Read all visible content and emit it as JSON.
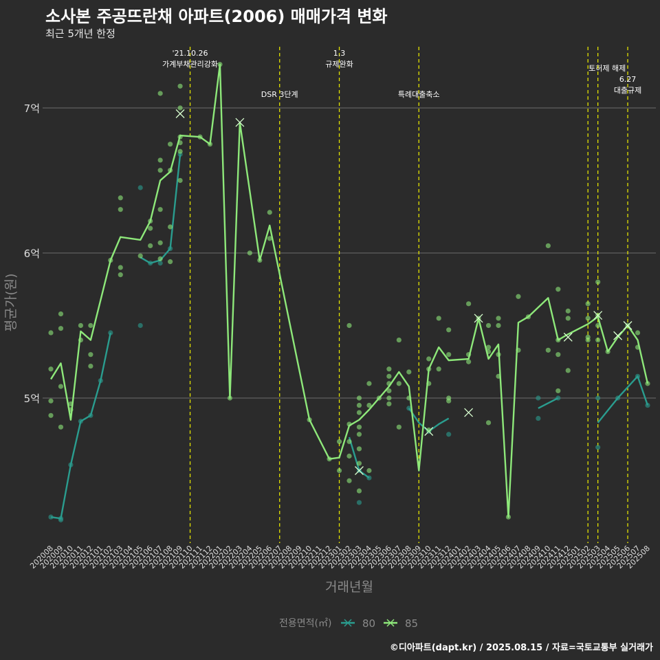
{
  "header": {
    "title": "소사본 주공뜨란채 아파트(2006) 매매가격 변화",
    "subtitle": "최근 5개년 한정"
  },
  "caption": "©디아파트(dapt.kr) / 2025.08.15 / 자료=국토교통부 실거래가",
  "colors": {
    "background": "#2b2b2b",
    "grid": "#6e6e6e",
    "event_line": "#e3e300",
    "series_80": "#2a9d8f",
    "series_85": "#8ee87a"
  },
  "chart_data": {
    "type": "line",
    "xlabel": "거래년월",
    "ylabel": "평균가(원)",
    "grid": true,
    "legend_position": "bottom",
    "legend_title": "전용면적(㎡)",
    "y_unit": "억원",
    "ylim": [
      4.0,
      7.45
    ],
    "yticks": [
      {
        "value": 5,
        "label": "5억"
      },
      {
        "value": 6,
        "label": "6억"
      },
      {
        "value": 7,
        "label": "7억"
      }
    ],
    "categories": [
      "202008",
      "202009",
      "202010",
      "202011",
      "202012",
      "202101",
      "202102",
      "202103",
      "202104",
      "202105",
      "202106",
      "202107",
      "202108",
      "202109",
      "202110",
      "202111",
      "202112",
      "202201",
      "202202",
      "202203",
      "202204",
      "202205",
      "202206",
      "202207",
      "202208",
      "202209",
      "202210",
      "202211",
      "202212",
      "202301",
      "202302",
      "202303",
      "202304",
      "202305",
      "202306",
      "202307",
      "202308",
      "202309",
      "202310",
      "202311",
      "202312",
      "202401",
      "202402",
      "202403",
      "202404",
      "202405",
      "202406",
      "202407",
      "202408",
      "202409",
      "202410",
      "202411",
      "202412",
      "202501",
      "202502",
      "202503",
      "202504",
      "202505",
      "202506",
      "202507",
      "202508"
    ],
    "events": [
      {
        "x": "202110",
        "label_lines": [
          "'21.10.26",
          "가계부채관리강화"
        ],
        "row": 1
      },
      {
        "x": "202207",
        "label_lines": [
          "DSR 3단계"
        ],
        "row": 2
      },
      {
        "x": "202301",
        "label_lines": [
          "1.3",
          "규제완화"
        ],
        "row": 1
      },
      {
        "x": "202309",
        "label_lines": [
          "특례대출축소"
        ],
        "row": 2
      },
      {
        "x": "202502",
        "label_lines": [
          "토허제 해제"
        ],
        "row": 1,
        "anchor": "end-right"
      },
      {
        "x": "202503",
        "label_lines": [],
        "row": 1
      },
      {
        "x": "202506",
        "label_lines": [
          "6.27",
          "대출규제"
        ],
        "row": 2
      }
    ],
    "series": [
      {
        "name": "80",
        "line": [
          [
            "202008",
            4.18
          ],
          [
            "202009",
            4.17
          ],
          [
            "202010",
            4.54
          ],
          [
            "202011",
            4.84
          ],
          [
            "202012",
            4.88
          ],
          [
            "202101",
            5.12
          ],
          [
            "202102",
            5.45
          ],
          null,
          [
            "202105",
            5.97
          ],
          [
            "202106",
            5.93
          ],
          [
            "202107",
            5.95
          ],
          [
            "202108",
            6.03
          ],
          [
            "202109",
            6.68
          ],
          null,
          [
            "202302",
            4.73
          ],
          [
            "202303",
            4.5
          ],
          [
            "202304",
            4.45
          ],
          null,
          [
            "202308",
            4.93
          ],
          [
            "202309",
            4.83
          ],
          [
            "202310",
            4.77
          ],
          [
            "202311",
            4.82
          ],
          [
            "202312",
            4.86
          ],
          null,
          [
            "202409",
            4.93
          ],
          [
            "202411",
            5.0
          ],
          null,
          [
            "202503",
            4.83
          ],
          [
            "202505",
            5.0
          ],
          [
            "202507",
            5.15
          ],
          [
            "202508",
            4.95
          ]
        ],
        "points": [
          [
            "202008",
            4.18
          ],
          [
            "202009",
            4.17
          ],
          [
            "202009",
            4.16
          ],
          [
            "202010",
            4.54
          ],
          [
            "202011",
            4.84
          ],
          [
            "202012",
            4.88
          ],
          [
            "202101",
            5.12
          ],
          [
            "202102",
            5.45
          ],
          [
            "202105",
            5.5
          ],
          [
            "202105",
            6.45
          ],
          [
            "202106",
            5.93
          ],
          [
            "202107",
            5.93
          ],
          [
            "202108",
            6.03
          ],
          [
            "202109",
            6.68
          ],
          [
            "202303",
            4.28
          ],
          [
            "202303",
            4.5
          ],
          [
            "202304",
            4.45
          ],
          [
            "202308",
            4.93
          ],
          [
            "202310",
            4.77
          ],
          [
            "202312",
            4.75
          ],
          [
            "202409",
            5.0
          ],
          [
            "202409",
            4.86
          ],
          [
            "202411",
            5.0
          ],
          [
            "202503",
            5.0
          ],
          [
            "202503",
            4.66
          ],
          [
            "202505",
            5.0
          ],
          [
            "202507",
            5.15
          ],
          [
            "202508",
            4.95
          ]
        ],
        "crosses": [
          [
            "202303",
            4.5
          ],
          [
            "202310",
            4.77
          ]
        ]
      },
      {
        "name": "85",
        "line": [
          [
            "202008",
            5.13
          ],
          [
            "202009",
            5.24
          ],
          [
            "202010",
            4.85
          ],
          [
            "202011",
            5.46
          ],
          [
            "202012",
            5.4
          ],
          [
            "202102",
            5.95
          ],
          [
            "202103",
            6.11
          ],
          [
            "202105",
            6.09
          ],
          [
            "202106",
            6.22
          ],
          [
            "202107",
            6.5
          ],
          [
            "202108",
            6.56
          ],
          [
            "202109",
            6.81
          ],
          [
            "202111",
            6.8
          ],
          [
            "202112",
            6.75
          ],
          [
            "202201",
            7.3
          ],
          [
            "202202",
            5.0
          ],
          [
            "202203",
            6.9
          ],
          [
            "202205",
            5.95
          ],
          [
            "202206",
            6.19
          ],
          [
            "202210",
            4.85
          ],
          [
            "202212",
            4.58
          ],
          [
            "202301",
            4.59
          ],
          [
            "202302",
            4.81
          ],
          [
            "202303",
            4.85
          ],
          [
            "202304",
            4.92
          ],
          [
            "202305",
            5.0
          ],
          [
            "202306",
            5.08
          ],
          [
            "202307",
            5.18
          ],
          [
            "202308",
            5.08
          ],
          [
            "202309",
            4.5
          ],
          [
            "202310",
            5.2
          ],
          [
            "202311",
            5.35
          ],
          [
            "202312",
            5.26
          ],
          [
            "202402",
            5.27
          ],
          [
            "202403",
            5.55
          ],
          [
            "202404",
            5.27
          ],
          [
            "202405",
            5.37
          ],
          [
            "202406",
            4.18
          ],
          [
            "202407",
            5.52
          ],
          [
            "202408",
            5.56
          ],
          [
            "202410",
            5.69
          ],
          [
            "202411",
            5.4
          ],
          [
            "202412",
            5.44
          ],
          [
            "202502",
            5.51
          ],
          [
            "202503",
            5.56
          ],
          [
            "202504",
            5.32
          ],
          [
            "202505",
            5.42
          ],
          [
            "202506",
            5.5
          ],
          [
            "202507",
            5.4
          ],
          [
            "202508",
            5.1
          ]
        ],
        "points": [
          [
            "202008",
            5.45
          ],
          [
            "202008",
            5.2
          ],
          [
            "202008",
            4.98
          ],
          [
            "202008",
            4.88
          ],
          [
            "202009",
            5.58
          ],
          [
            "202009",
            5.48
          ],
          [
            "202009",
            5.08
          ],
          [
            "202009",
            4.8
          ],
          [
            "202010",
            4.96
          ],
          [
            "202010",
            4.92
          ],
          [
            "202011",
            5.5
          ],
          [
            "202011",
            5.4
          ],
          [
            "202012",
            5.5
          ],
          [
            "202012",
            5.3
          ],
          [
            "202012",
            5.22
          ],
          [
            "202102",
            5.95
          ],
          [
            "202103",
            6.38
          ],
          [
            "202103",
            6.3
          ],
          [
            "202103",
            5.9
          ],
          [
            "202103",
            5.85
          ],
          [
            "202105",
            5.98
          ],
          [
            "202106",
            6.17
          ],
          [
            "202106",
            6.05
          ],
          [
            "202106",
            6.22
          ],
          [
            "202107",
            7.1
          ],
          [
            "202107",
            6.64
          ],
          [
            "202107",
            6.57
          ],
          [
            "202107",
            6.3
          ],
          [
            "202107",
            6.07
          ],
          [
            "202107",
            5.96
          ],
          [
            "202108",
            6.75
          ],
          [
            "202108",
            6.57
          ],
          [
            "202108",
            6.18
          ],
          [
            "202108",
            5.94
          ],
          [
            "202109",
            7.15
          ],
          [
            "202109",
            7.0
          ],
          [
            "202109",
            6.8
          ],
          [
            "202109",
            6.76
          ],
          [
            "202109",
            6.7
          ],
          [
            "202109",
            6.5
          ],
          [
            "202111",
            6.8
          ],
          [
            "202112",
            6.75
          ],
          [
            "202201",
            7.3
          ],
          [
            "202202",
            5.0
          ],
          [
            "202204",
            6.0
          ],
          [
            "202205",
            5.95
          ],
          [
            "202206",
            6.28
          ],
          [
            "202206",
            6.1
          ],
          [
            "202210",
            4.85
          ],
          [
            "202212",
            4.58
          ],
          [
            "202301",
            4.7
          ],
          [
            "202301",
            4.5
          ],
          [
            "202302",
            5.5
          ],
          [
            "202302",
            4.82
          ],
          [
            "202302",
            4.7
          ],
          [
            "202302",
            4.6
          ],
          [
            "202302",
            4.43
          ],
          [
            "202303",
            5.0
          ],
          [
            "202303",
            4.95
          ],
          [
            "202303",
            4.9
          ],
          [
            "202303",
            4.8
          ],
          [
            "202303",
            4.75
          ],
          [
            "202303",
            4.65
          ],
          [
            "202303",
            4.55
          ],
          [
            "202303",
            4.36
          ],
          [
            "202304",
            5.1
          ],
          [
            "202304",
            4.95
          ],
          [
            "202304",
            4.5
          ],
          [
            "202305",
            5.0
          ],
          [
            "202306",
            5.2
          ],
          [
            "202306",
            5.15
          ],
          [
            "202306",
            5.1
          ],
          [
            "202306",
            5.05
          ],
          [
            "202306",
            5.0
          ],
          [
            "202306",
            4.96
          ],
          [
            "202307",
            5.4
          ],
          [
            "202307",
            5.1
          ],
          [
            "202307",
            4.8
          ],
          [
            "202308",
            5.18
          ],
          [
            "202308",
            5.0
          ],
          [
            "202310",
            5.27
          ],
          [
            "202310",
            5.2
          ],
          [
            "202310",
            5.1
          ],
          [
            "202310",
            4.78
          ],
          [
            "202311",
            5.55
          ],
          [
            "202311",
            5.2
          ],
          [
            "202312",
            5.47
          ],
          [
            "202312",
            5.3
          ],
          [
            "202312",
            5.0
          ],
          [
            "202312",
            4.98
          ],
          [
            "202402",
            5.65
          ],
          [
            "202402",
            5.3
          ],
          [
            "202402",
            5.25
          ],
          [
            "202403",
            5.55
          ],
          [
            "202404",
            5.5
          ],
          [
            "202404",
            5.35
          ],
          [
            "202404",
            5.32
          ],
          [
            "202404",
            4.83
          ],
          [
            "202405",
            5.55
          ],
          [
            "202405",
            5.5
          ],
          [
            "202405",
            5.3
          ],
          [
            "202405",
            5.15
          ],
          [
            "202406",
            4.18
          ],
          [
            "202407",
            5.7
          ],
          [
            "202407",
            5.33
          ],
          [
            "202408",
            5.56
          ],
          [
            "202410",
            6.05
          ],
          [
            "202410",
            5.33
          ],
          [
            "202411",
            5.75
          ],
          [
            "202411",
            5.4
          ],
          [
            "202411",
            5.3
          ],
          [
            "202411",
            5.05
          ],
          [
            "202412",
            5.6
          ],
          [
            "202412",
            5.55
          ],
          [
            "202412",
            5.19
          ],
          [
            "202502",
            5.65
          ],
          [
            "202502",
            5.55
          ],
          [
            "202502",
            5.42
          ],
          [
            "202502",
            5.4
          ],
          [
            "202503",
            5.8
          ],
          [
            "202503",
            5.57
          ],
          [
            "202503",
            5.5
          ],
          [
            "202503",
            5.4
          ],
          [
            "202504",
            5.32
          ],
          [
            "202506",
            5.5
          ],
          [
            "202507",
            5.45
          ],
          [
            "202507",
            5.35
          ],
          [
            "202508",
            5.1
          ]
        ],
        "crosses": [
          [
            "202109",
            6.96
          ],
          [
            "202203",
            6.9
          ],
          [
            "202403",
            5.55
          ],
          [
            "202402",
            4.9
          ],
          [
            "202412",
            5.42
          ],
          [
            "202503",
            5.57
          ],
          [
            "202505",
            5.43
          ],
          [
            "202506",
            5.5
          ]
        ]
      }
    ]
  }
}
